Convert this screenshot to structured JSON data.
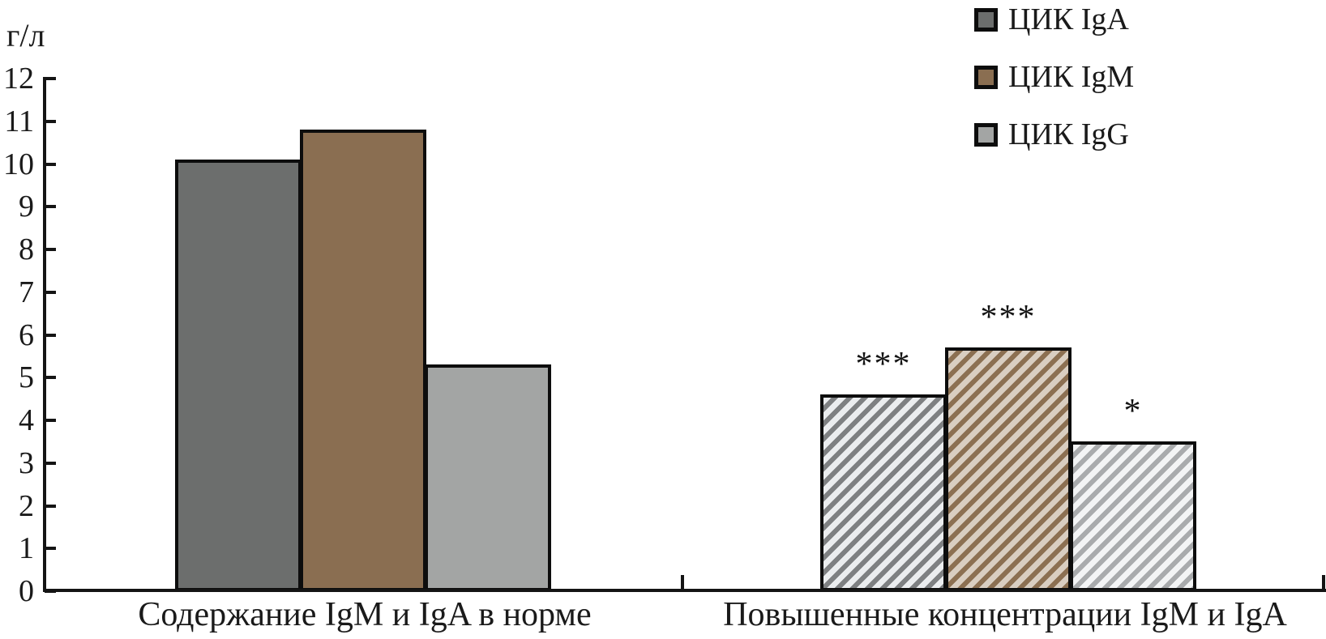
{
  "chart_data": {
    "type": "bar",
    "title": "",
    "ylabel": "г/л",
    "xlabel": "",
    "ylim": [
      0,
      12
    ],
    "yticks": [
      0,
      1,
      2,
      3,
      4,
      5,
      6,
      7,
      8,
      9,
      10,
      11,
      12
    ],
    "grid": false,
    "legend_position": "top-right",
    "categories": [
      "Содержание IgM и IgA в норме",
      "Повышенные концентрации IgM и IgA"
    ],
    "group_styles": [
      "solid",
      "hatched"
    ],
    "series": [
      {
        "name": "ЦИК IgA",
        "values": [
          10.1,
          4.6
        ],
        "annotations": [
          "",
          "***"
        ],
        "color": "#6c6e6d",
        "hatch_stripe": "#7e8082",
        "hatch_bg": "#ebedef"
      },
      {
        "name": "ЦИК IgM",
        "values": [
          10.8,
          5.7
        ],
        "annotations": [
          "",
          "***"
        ],
        "color": "#8a6e51",
        "hatch_stripe": "#8c7052",
        "hatch_bg": "#d9cec1"
      },
      {
        "name": "ЦИК IgG",
        "values": [
          5.3,
          3.5
        ],
        "annotations": [
          "",
          "*"
        ],
        "color": "#a3a5a4",
        "hatch_stripe": "#a9abad",
        "hatch_bg": "#f3f4f5"
      }
    ],
    "axis_color": "#141414",
    "bar_border_color": "#0d0d0d",
    "text_color": "#1a1a1a"
  }
}
